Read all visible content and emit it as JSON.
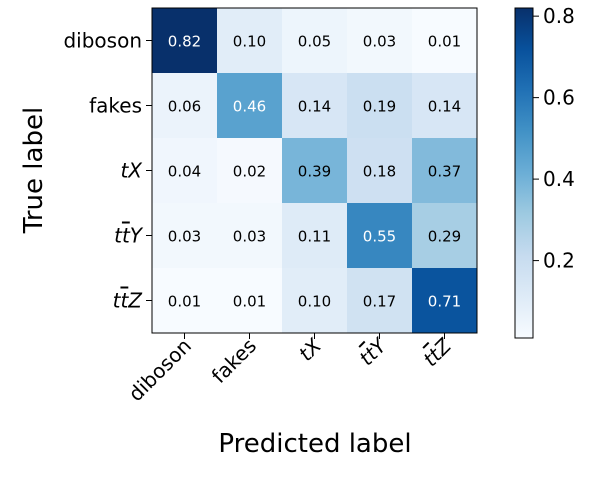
{
  "chart_data": {
    "type": "heatmap",
    "title": "",
    "xlabel": "Predicted label",
    "ylabel": "True label",
    "rows": [
      "diboson",
      "fakes",
      "tX",
      "tt̄Y",
      "tt̄Z"
    ],
    "columns": [
      "diboson",
      "fakes",
      "tX",
      "tt̄Y",
      "tt̄Z"
    ],
    "values": [
      [
        0.82,
        0.1,
        0.05,
        0.03,
        0.01
      ],
      [
        0.06,
        0.46,
        0.14,
        0.19,
        0.14
      ],
      [
        0.04,
        0.02,
        0.39,
        0.18,
        0.37
      ],
      [
        0.03,
        0.03,
        0.11,
        0.55,
        0.29
      ],
      [
        0.01,
        0.01,
        0.1,
        0.17,
        0.71
      ]
    ],
    "colormap": "Blues",
    "colorbar": {
      "range": [
        0.01,
        0.82
      ],
      "ticks": [
        0.2,
        0.4,
        0.6,
        0.8
      ],
      "tick_labels": [
        "0.2",
        "0.4",
        "0.6",
        "0.8"
      ]
    },
    "colors": {
      "low": "#f7fbff",
      "high": "#08306b",
      "text_dark": "#000000",
      "text_light": "#ffffff"
    }
  }
}
